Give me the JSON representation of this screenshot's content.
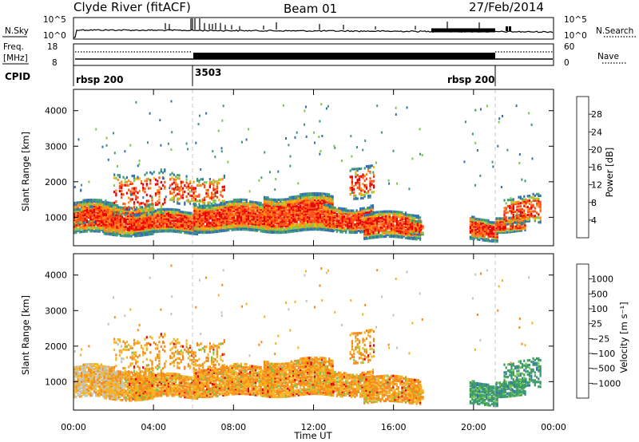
{
  "header": {
    "station": "Clyde River (fitACF)",
    "beam": "Beam 01",
    "date": "27/Feb/2014"
  },
  "top_panels": {
    "nsky": {
      "label": "N.Sky",
      "left_ticks": [
        "10^5",
        "10^0"
      ]
    },
    "nsearch": {
      "label": "N.Search",
      "right_ticks": [
        "10^5",
        "10^0"
      ]
    },
    "freq": {
      "label_line1": "Freq.",
      "label_line2": "[MHz]",
      "left_ticks": [
        "18",
        "8"
      ]
    },
    "nave": {
      "label": "Nave",
      "right_ticks": [
        "60",
        "0"
      ]
    },
    "cpid": {
      "label": "CPID",
      "segments": [
        "rbsp 200",
        "3503",
        "rbsp 200"
      ]
    }
  },
  "chart_data": [
    {
      "type": "heatmap",
      "name": "power",
      "ylabel": "Slant Range [km]",
      "ylim": [
        200,
        4600
      ],
      "yticks": [
        "1000",
        "2000",
        "3000",
        "4000"
      ],
      "colorbar_label": "Power [dB]",
      "colorbar_ticks": [
        "4",
        "8",
        "12",
        "16",
        "20",
        "24",
        "28"
      ],
      "colors": [
        "#1a1adc",
        "#2f6fb0",
        "#3f9a73",
        "#7ec84a",
        "#f4b400",
        "#ff8a1c",
        "#ff4d14",
        "#e60000"
      ]
    },
    {
      "type": "heatmap",
      "name": "velocity",
      "ylabel": "Slant Range [km]",
      "xlabel": "Time UT",
      "ylim": [
        200,
        4600
      ],
      "yticks": [
        "1000",
        "2000",
        "3000",
        "4000"
      ],
      "xticks": [
        "00:00",
        "04:00",
        "08:00",
        "12:00",
        "16:00",
        "20:00",
        "00:00"
      ],
      "colorbar_label": "Velocity [m s⁻¹]",
      "colorbar_ticks": [
        "1000",
        "500",
        "100",
        "25",
        "−25",
        "−100",
        "−500",
        "−1000"
      ],
      "colors": [
        "#2b3fd6",
        "#3275a8",
        "#3b9a68",
        "#74c84a",
        "#c4c4b8",
        "#f6b320",
        "#f4891c",
        "#f35a15",
        "#e60000"
      ]
    }
  ]
}
